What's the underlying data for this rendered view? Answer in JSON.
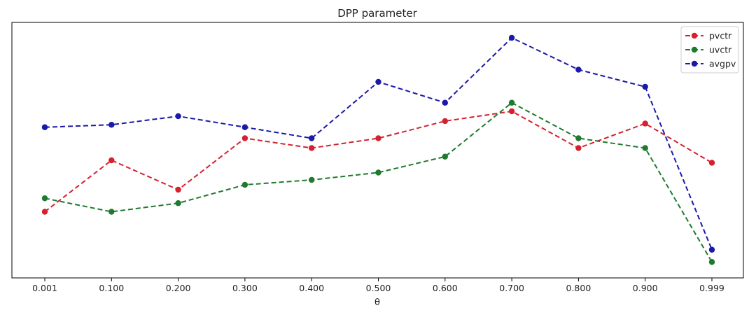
{
  "chart_data": {
    "type": "line",
    "title": "DPP parameter",
    "xlabel": "θ",
    "ylabel": "",
    "categories": [
      "0.001",
      "0.100",
      "0.200",
      "0.300",
      "0.400",
      "0.500",
      "0.600",
      "0.700",
      "0.800",
      "0.900",
      "0.999"
    ],
    "ylim": [
      0,
      100
    ],
    "grid": false,
    "legend_position": "top-right",
    "series": [
      {
        "name": "pvctr",
        "color": "#d62030",
        "marker": "circle",
        "linestyle": "dashed",
        "values": [
          25,
          46,
          34,
          55,
          51,
          55,
          62,
          66,
          51,
          61,
          45
        ]
      },
      {
        "name": "uvctr",
        "color": "#1e7a2e",
        "marker": "circle",
        "linestyle": "dashed",
        "values": [
          30.5,
          25,
          28.5,
          36,
          38,
          41,
          47.5,
          69.5,
          55,
          51,
          4.5
        ]
      },
      {
        "name": "avgpv",
        "color": "#1a1aa8",
        "marker": "circle",
        "linestyle": "dashed",
        "values": [
          59.5,
          60.5,
          64,
          59.5,
          55,
          78,
          69.5,
          96,
          83,
          76,
          9.5
        ]
      }
    ]
  }
}
